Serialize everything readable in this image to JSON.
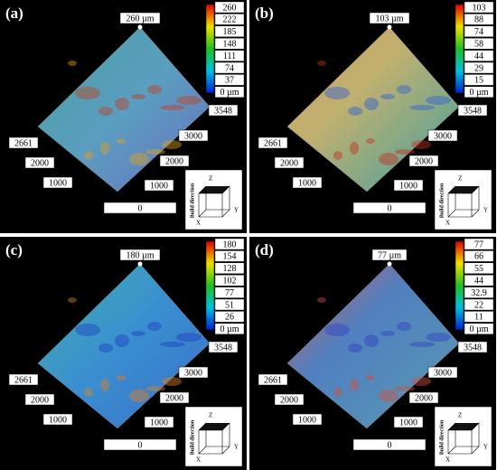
{
  "panels": [
    {
      "label": "(a)",
      "peak": "260 µm",
      "scale": [
        "260",
        "222",
        "185",
        "148",
        "111",
        "74",
        "37",
        "0 µm"
      ],
      "right_axis": [
        "3548",
        "3000",
        "2000",
        "1000",
        "0"
      ],
      "left_axis": [
        "2661",
        "2000",
        "1000"
      ],
      "build": {
        "title": "Build direction",
        "x": "X",
        "y": "Y",
        "z": "Z"
      }
    },
    {
      "label": "(b)",
      "peak": "103 µm",
      "scale": [
        "103",
        "88",
        "74",
        "58",
        "44",
        "29",
        "15",
        "0 µm"
      ],
      "right_axis": [
        "3548",
        "3000",
        "2000",
        "1000",
        "0"
      ],
      "left_axis": [
        "2661",
        "2000",
        "1000"
      ],
      "build": {
        "title": "Build direction",
        "x": "X",
        "y": "Y",
        "z": "Z"
      }
    },
    {
      "label": "(c)",
      "peak": "180 µm",
      "scale": [
        "180",
        "154",
        "128",
        "102",
        "77",
        "51",
        "26",
        "0 µm"
      ],
      "right_axis": [
        "3548",
        "3000",
        "2000",
        "1000",
        "0"
      ],
      "left_axis": [
        "2661",
        "2000",
        "1000"
      ],
      "build": {
        "title": "Build direction",
        "x": "X",
        "y": "Y",
        "z": "Z"
      }
    },
    {
      "label": "(d)",
      "peak": "77 µm",
      "scale": [
        "77",
        "66",
        "55",
        "44",
        "32.9",
        "22",
        "11",
        "0 µm"
      ],
      "right_axis": [
        "3548",
        "3000",
        "2000",
        "1000",
        "0"
      ],
      "left_axis": [
        "2661",
        "2000",
        "1000"
      ],
      "build": {
        "title": "Build direction",
        "x": "X",
        "y": "Y",
        "z": "Z"
      }
    }
  ]
}
